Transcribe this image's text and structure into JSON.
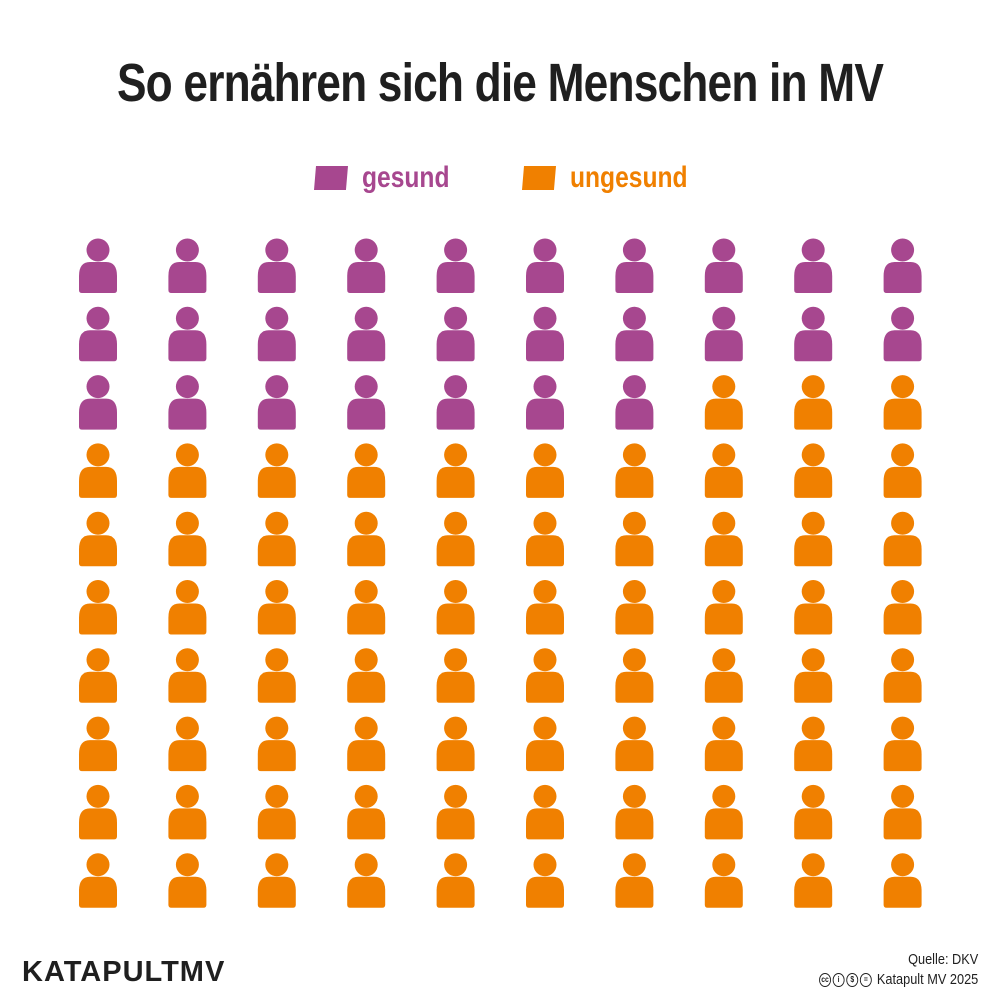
{
  "title": "So ernähren sich die Menschen in MV",
  "colors": {
    "gesund": "#a7478f",
    "ungesund": "#f08000",
    "text": "#1f1f1f",
    "background": "#ffffff"
  },
  "legend": [
    {
      "label": "gesund",
      "color": "#a7478f"
    },
    {
      "label": "ungesund",
      "color": "#f08000"
    }
  ],
  "chart_data": {
    "type": "pictogram",
    "title": "So ernähren sich die Menschen in MV",
    "total_icons": 100,
    "grid": {
      "rows": 10,
      "columns": 10,
      "fill_order": "row-major"
    },
    "series": [
      {
        "name": "gesund",
        "value": 27
      },
      {
        "name": "ungesund",
        "value": 73
      }
    ],
    "icon": "person-icon",
    "legend_position": "top-center"
  },
  "footer": {
    "logo": "KATAPULTMV",
    "source": "Quelle: DKV",
    "license_icons": [
      "cc-icon",
      "by-icon",
      "nc-icon",
      "nd-icon"
    ],
    "credit": "Katapult MV 2025"
  }
}
